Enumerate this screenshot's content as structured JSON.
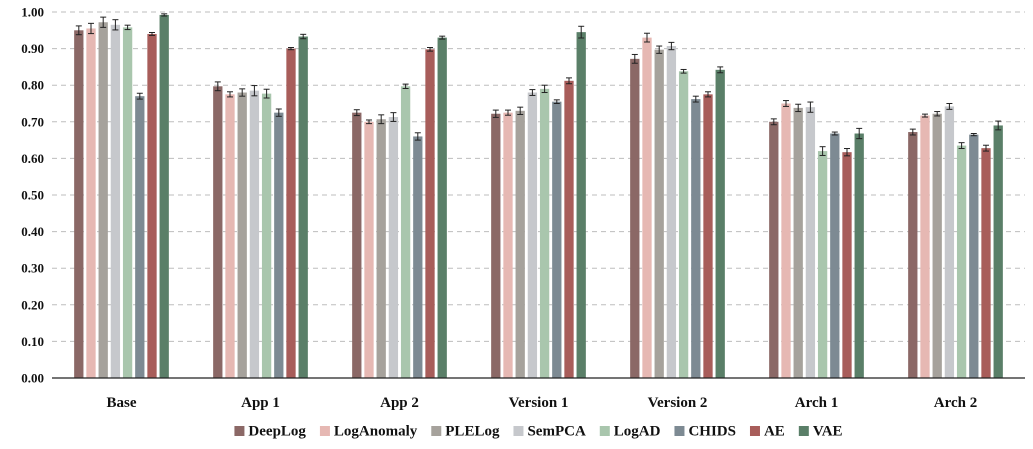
{
  "chart_data": {
    "type": "bar",
    "categories": [
      "Base",
      "App 1",
      "App 2",
      "Version 1",
      "Version 2",
      "Arch 1",
      "Arch 2"
    ],
    "ylim": [
      0,
      1.0
    ],
    "yticks": [
      "0.00",
      "0.10",
      "0.20",
      "0.30",
      "0.40",
      "0.50",
      "0.60",
      "0.70",
      "0.80",
      "0.90",
      "1.00"
    ],
    "grid": true,
    "legend_position": "bottom",
    "series": [
      {
        "name": "DeepLog",
        "color": "#8b6866",
        "values": [
          0.95,
          0.797,
          0.725,
          0.722,
          0.872,
          0.7,
          0.672
        ],
        "errors": [
          0.012,
          0.012,
          0.008,
          0.01,
          0.012,
          0.008,
          0.008
        ]
      },
      {
        "name": "LogAnomaly",
        "color": "#e6b8b3",
        "values": [
          0.955,
          0.775,
          0.7,
          0.725,
          0.93,
          0.75,
          0.717
        ],
        "errors": [
          0.014,
          0.007,
          0.005,
          0.007,
          0.012,
          0.008,
          0.004
        ]
      },
      {
        "name": "PLELog",
        "color": "#a6a29c",
        "values": [
          0.972,
          0.78,
          0.707,
          0.73,
          0.897,
          0.738,
          0.722
        ],
        "errors": [
          0.014,
          0.01,
          0.012,
          0.01,
          0.01,
          0.01,
          0.006
        ]
      },
      {
        "name": "SemPCA",
        "color": "#c6c8cc",
        "values": [
          0.965,
          0.785,
          0.713,
          0.78,
          0.907,
          0.74,
          0.742
        ],
        "errors": [
          0.014,
          0.014,
          0.012,
          0.008,
          0.01,
          0.014,
          0.008
        ]
      },
      {
        "name": "LogAD",
        "color": "#a9c6ad",
        "values": [
          0.958,
          0.777,
          0.797,
          0.79,
          0.838,
          0.62,
          0.635
        ],
        "errors": [
          0.006,
          0.012,
          0.006,
          0.01,
          0.005,
          0.012,
          0.008
        ]
      },
      {
        "name": "CHIDS",
        "color": "#7d8a93",
        "values": [
          0.77,
          0.725,
          0.66,
          0.755,
          0.762,
          0.668,
          0.665
        ],
        "errors": [
          0.008,
          0.01,
          0.01,
          0.005,
          0.008,
          0.004,
          0.003
        ]
      },
      {
        "name": "AE",
        "color": "#a85d5a",
        "values": [
          0.94,
          0.9,
          0.898,
          0.812,
          0.775,
          0.617,
          0.628
        ],
        "errors": [
          0.004,
          0.003,
          0.005,
          0.008,
          0.007,
          0.01,
          0.008
        ]
      },
      {
        "name": "VAE",
        "color": "#5a7f68",
        "values": [
          0.992,
          0.933,
          0.93,
          0.945,
          0.842,
          0.668,
          0.69
        ],
        "errors": [
          0.003,
          0.006,
          0.004,
          0.016,
          0.008,
          0.014,
          0.012
        ]
      }
    ]
  }
}
